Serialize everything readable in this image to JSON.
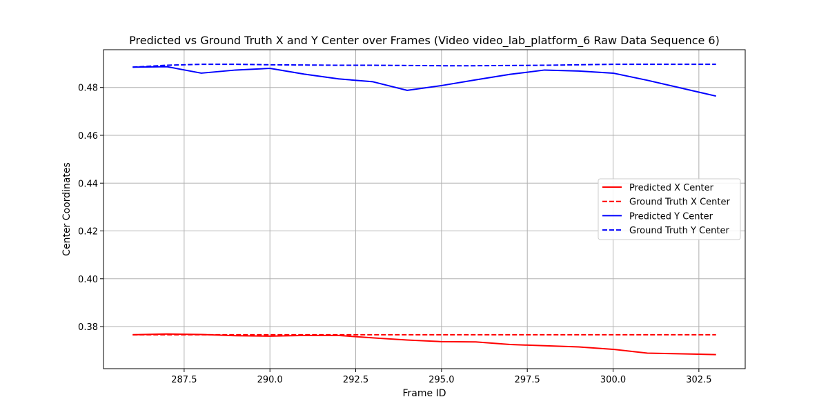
{
  "chart_data": {
    "type": "line",
    "title": "Predicted vs Ground Truth X and Y Center over Frames (Video video_lab_platform_6 Raw Data Sequence 6)",
    "xlabel": "Frame ID",
    "ylabel": "Center Coordinates",
    "xlim": [
      285.15,
      303.85
    ],
    "ylim": [
      0.3624,
      0.4958
    ],
    "xticks": [
      287.5,
      290.0,
      292.5,
      295.0,
      297.5,
      300.0,
      302.5
    ],
    "xtick_labels": [
      "287.5",
      "290.0",
      "292.5",
      "295.0",
      "297.5",
      "300.0",
      "302.5"
    ],
    "yticks": [
      0.38,
      0.4,
      0.42,
      0.44,
      0.46,
      0.48
    ],
    "ytick_labels": [
      "0.38",
      "0.40",
      "0.42",
      "0.44",
      "0.46",
      "0.48"
    ],
    "grid": true,
    "legend_position": "center-right",
    "x": [
      286,
      287,
      288,
      289,
      290,
      291,
      292,
      293,
      294,
      295,
      296,
      297,
      298,
      299,
      300,
      301,
      302,
      303
    ],
    "series": [
      {
        "name": "Predicted X Center",
        "color": "#ff0000",
        "dash": "solid",
        "values": [
          0.3766,
          0.3769,
          0.3767,
          0.3762,
          0.376,
          0.3763,
          0.3763,
          0.3753,
          0.3744,
          0.3737,
          0.3736,
          0.3725,
          0.372,
          0.3715,
          0.3705,
          0.3689,
          0.3686,
          0.3683
        ]
      },
      {
        "name": "Ground Truth X Center",
        "color": "#ff0000",
        "dash": "dashed",
        "values": [
          0.3766,
          0.3766,
          0.3766,
          0.3766,
          0.3766,
          0.3766,
          0.3766,
          0.3766,
          0.3766,
          0.3766,
          0.3766,
          0.3766,
          0.3766,
          0.3766,
          0.3766,
          0.3766,
          0.3766,
          0.3766
        ]
      },
      {
        "name": "Predicted Y Center",
        "color": "#0000ff",
        "dash": "solid",
        "values": [
          0.4885,
          0.4887,
          0.486,
          0.4873,
          0.488,
          0.4856,
          0.4836,
          0.4824,
          0.4788,
          0.4808,
          0.4832,
          0.4855,
          0.4873,
          0.4869,
          0.486,
          0.483,
          0.4797,
          0.4764
        ]
      },
      {
        "name": "Ground Truth Y Center",
        "color": "#0000ff",
        "dash": "dashed",
        "values": [
          0.4885,
          0.4893,
          0.4897,
          0.4897,
          0.4895,
          0.4894,
          0.4893,
          0.4893,
          0.4892,
          0.4891,
          0.4891,
          0.4892,
          0.4893,
          0.4895,
          0.4897,
          0.4897,
          0.4897,
          0.4897
        ]
      }
    ]
  }
}
